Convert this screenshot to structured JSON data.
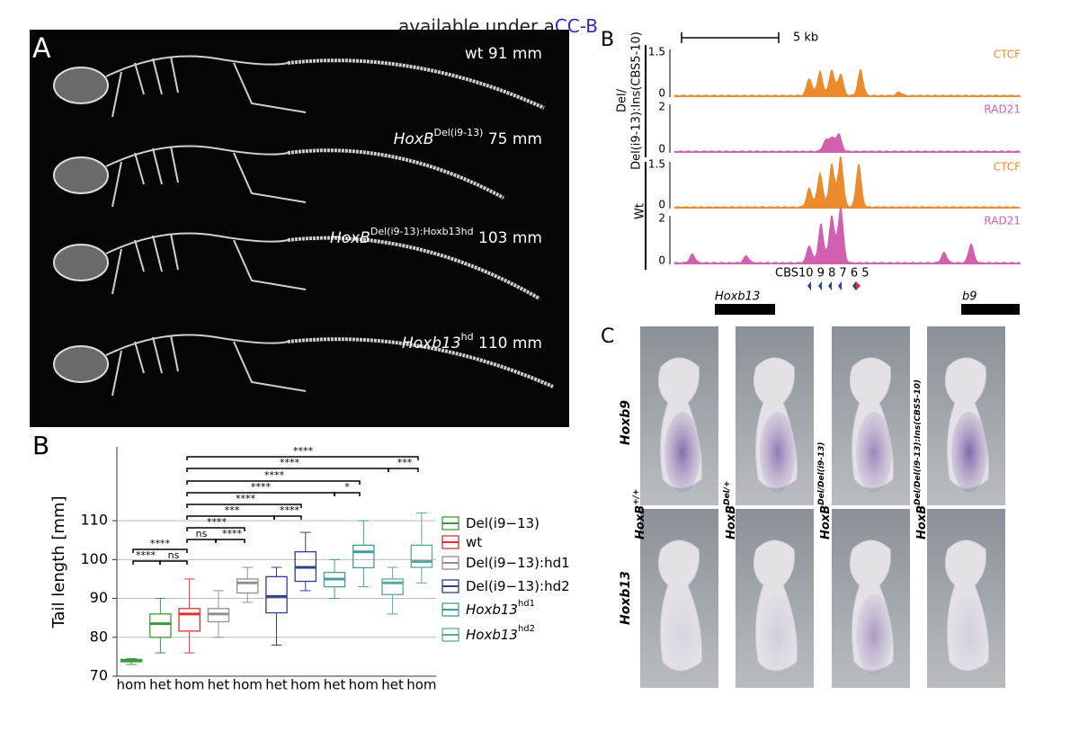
{
  "header": {
    "text": "available under a",
    "link": "CC-B"
  },
  "panel_a": {
    "letter": "A",
    "labels": [
      {
        "gene": "wt",
        "length": "91 mm"
      },
      {
        "gene": "HoxB",
        "sup": "Del(i9-13)",
        "length": "75 mm"
      },
      {
        "gene": "HoxB",
        "sup": "Del(i9-13):Hoxb13hd",
        "length": "103 mm"
      },
      {
        "gene": "Hoxb13",
        "sup": "hd",
        "length": "110 mm"
      }
    ]
  },
  "tracks": {
    "letter": "B",
    "scale_label": "5 kb",
    "groups": [
      {
        "lines": [
          "Del/",
          "Del(i9-13):Ins(CBS5-10)"
        ]
      },
      {
        "lines": [
          "Wt"
        ]
      }
    ],
    "rows": [
      {
        "name": "CTCF",
        "max": 1.5,
        "min": 0
      },
      {
        "name": "RAD21",
        "max": 2,
        "min": 0
      },
      {
        "name": "CTCF",
        "max": 1.5,
        "min": 0
      },
      {
        "name": "RAD21",
        "max": 2,
        "min": 0
      }
    ],
    "cbs": "CBS10 9 8 7 6 5",
    "genes": [
      "Hoxb13",
      "b9"
    ]
  },
  "chart_data": {
    "type": "box",
    "panel_label": "B",
    "y_label": "Tail length [mm]",
    "ylim": [
      70,
      129
    ],
    "yticks": [
      70,
      80,
      90,
      100,
      110
    ],
    "grid": true,
    "series": [
      {
        "name": "Del(i9−13)",
        "color": "#3a9a3a",
        "categories": [
          "hom",
          "het"
        ],
        "boxes": [
          {
            "low": 73,
            "q1": 73.7,
            "median": 74,
            "q3": 74.3,
            "high": 74.5
          },
          {
            "low": 76,
            "q1": 80,
            "median": 83.5,
            "q3": 86,
            "high": 90
          }
        ]
      },
      {
        "name": "wt",
        "color": "#e03030",
        "categories": [
          "hom"
        ],
        "boxes": [
          {
            "low": 76,
            "q1": 81.6,
            "median": 86,
            "q3": 87.4,
            "high": 95
          }
        ]
      },
      {
        "name": "Del(i9−13):hd1",
        "color": "#8f8f8f",
        "categories": [
          "het",
          "hom"
        ],
        "boxes": [
          {
            "low": 80,
            "q1": 84,
            "median": 86,
            "q3": 87.4,
            "high": 92
          },
          {
            "low": 89,
            "q1": 91.4,
            "median": 94,
            "q3": 95,
            "high": 98
          }
        ]
      },
      {
        "name": "Del(i9−13):hd2",
        "color": "#2b3f8c",
        "categories": [
          "het",
          "hom"
        ],
        "boxes": [
          {
            "low": 78,
            "q1": 86.3,
            "median": 90.5,
            "q3": 95.6,
            "high": 98
          },
          {
            "low": 92,
            "q1": 94.4,
            "median": 98,
            "q3": 102,
            "high": 107
          }
        ]
      },
      {
        "name": "Hoxb13",
        "sup": "hd1",
        "color": "#3f9f9c",
        "categories": [
          "het",
          "hom"
        ],
        "boxes": [
          {
            "low": 90,
            "q1": 93,
            "median": 95,
            "q3": 96.7,
            "high": 100
          },
          {
            "low": 93,
            "q1": 97.9,
            "median": 102,
            "q3": 103.7,
            "high": 110
          }
        ]
      },
      {
        "name": "Hoxb13",
        "sup": "hd2",
        "color": "#5aa8a0",
        "categories": [
          "het",
          "hom"
        ],
        "boxes": [
          {
            "low": 86,
            "q1": 91,
            "median": 94,
            "q3": 95,
            "high": 98
          },
          {
            "low": 94,
            "q1": 98,
            "median": 99.5,
            "q3": 103.7,
            "high": 112
          }
        ]
      }
    ],
    "annotations": [
      "****",
      "****",
      "***",
      "****",
      "****",
      "*",
      "****",
      "***",
      "****",
      "****",
      "ns",
      "****",
      "****",
      "****",
      "ns"
    ]
  },
  "panel_c": {
    "letter": "C",
    "rows": [
      "Hoxb9",
      "Hoxb13"
    ],
    "columns": [
      {
        "gene": "HoxB",
        "sup": "+/+"
      },
      {
        "gene": "HoxB",
        "sup": "Del/+"
      },
      {
        "gene": "HoxB",
        "sup": "Del/Del(i9-13)"
      },
      {
        "gene": "HoxB",
        "sup": "Del/Del(i9-13):Ins(CBS5-10)"
      }
    ]
  }
}
